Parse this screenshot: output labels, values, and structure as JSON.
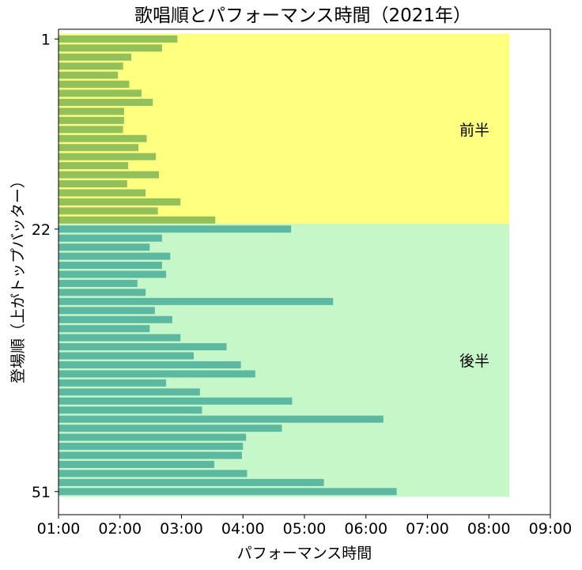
{
  "chart_data": {
    "type": "bar",
    "orientation": "horizontal",
    "title": "歌唱順とパフォーマンス時間（2021年）",
    "xlabel": "パフォーマンス時間",
    "ylabel": "登場順（上がトップバッター）",
    "x_unit": "minutes",
    "xlim": [
      "01:00",
      "09:00"
    ],
    "x_ticks": [
      "01:00",
      "02:00",
      "03:00",
      "04:00",
      "05:00",
      "06:00",
      "07:00",
      "08:00",
      "09:00"
    ],
    "y_ticks": [
      1,
      22,
      51
    ],
    "grid": false,
    "sections": [
      {
        "label": "前半",
        "from": 1,
        "to": 21,
        "color": "#ffff80",
        "bar_color": "#92c05a"
      },
      {
        "label": "後半",
        "from": 22,
        "to": 51,
        "color": "#c5f7c8",
        "bar_color": "#5cb8a0"
      }
    ],
    "section_span_end": "08:20",
    "durations": [
      "02:56",
      "02:41",
      "02:11",
      "02:03",
      "01:58",
      "02:09",
      "02:21",
      "02:32",
      "02:04",
      "02:04",
      "02:03",
      "02:26",
      "02:18",
      "02:35",
      "02:08",
      "02:38",
      "02:07",
      "02:25",
      "02:59",
      "02:37",
      "03:33",
      "04:47",
      "02:41",
      "02:29",
      "02:49",
      "02:41",
      "02:45",
      "02:17",
      "02:25",
      "05:28",
      "02:34",
      "02:51",
      "02:29",
      "02:59",
      "03:44",
      "03:12",
      "03:58",
      "04:12",
      "02:45",
      "03:18",
      "04:48",
      "03:20",
      "06:17",
      "04:38",
      "04:03",
      "04:00",
      "03:59",
      "03:32",
      "04:04",
      "05:19",
      "06:30"
    ]
  }
}
